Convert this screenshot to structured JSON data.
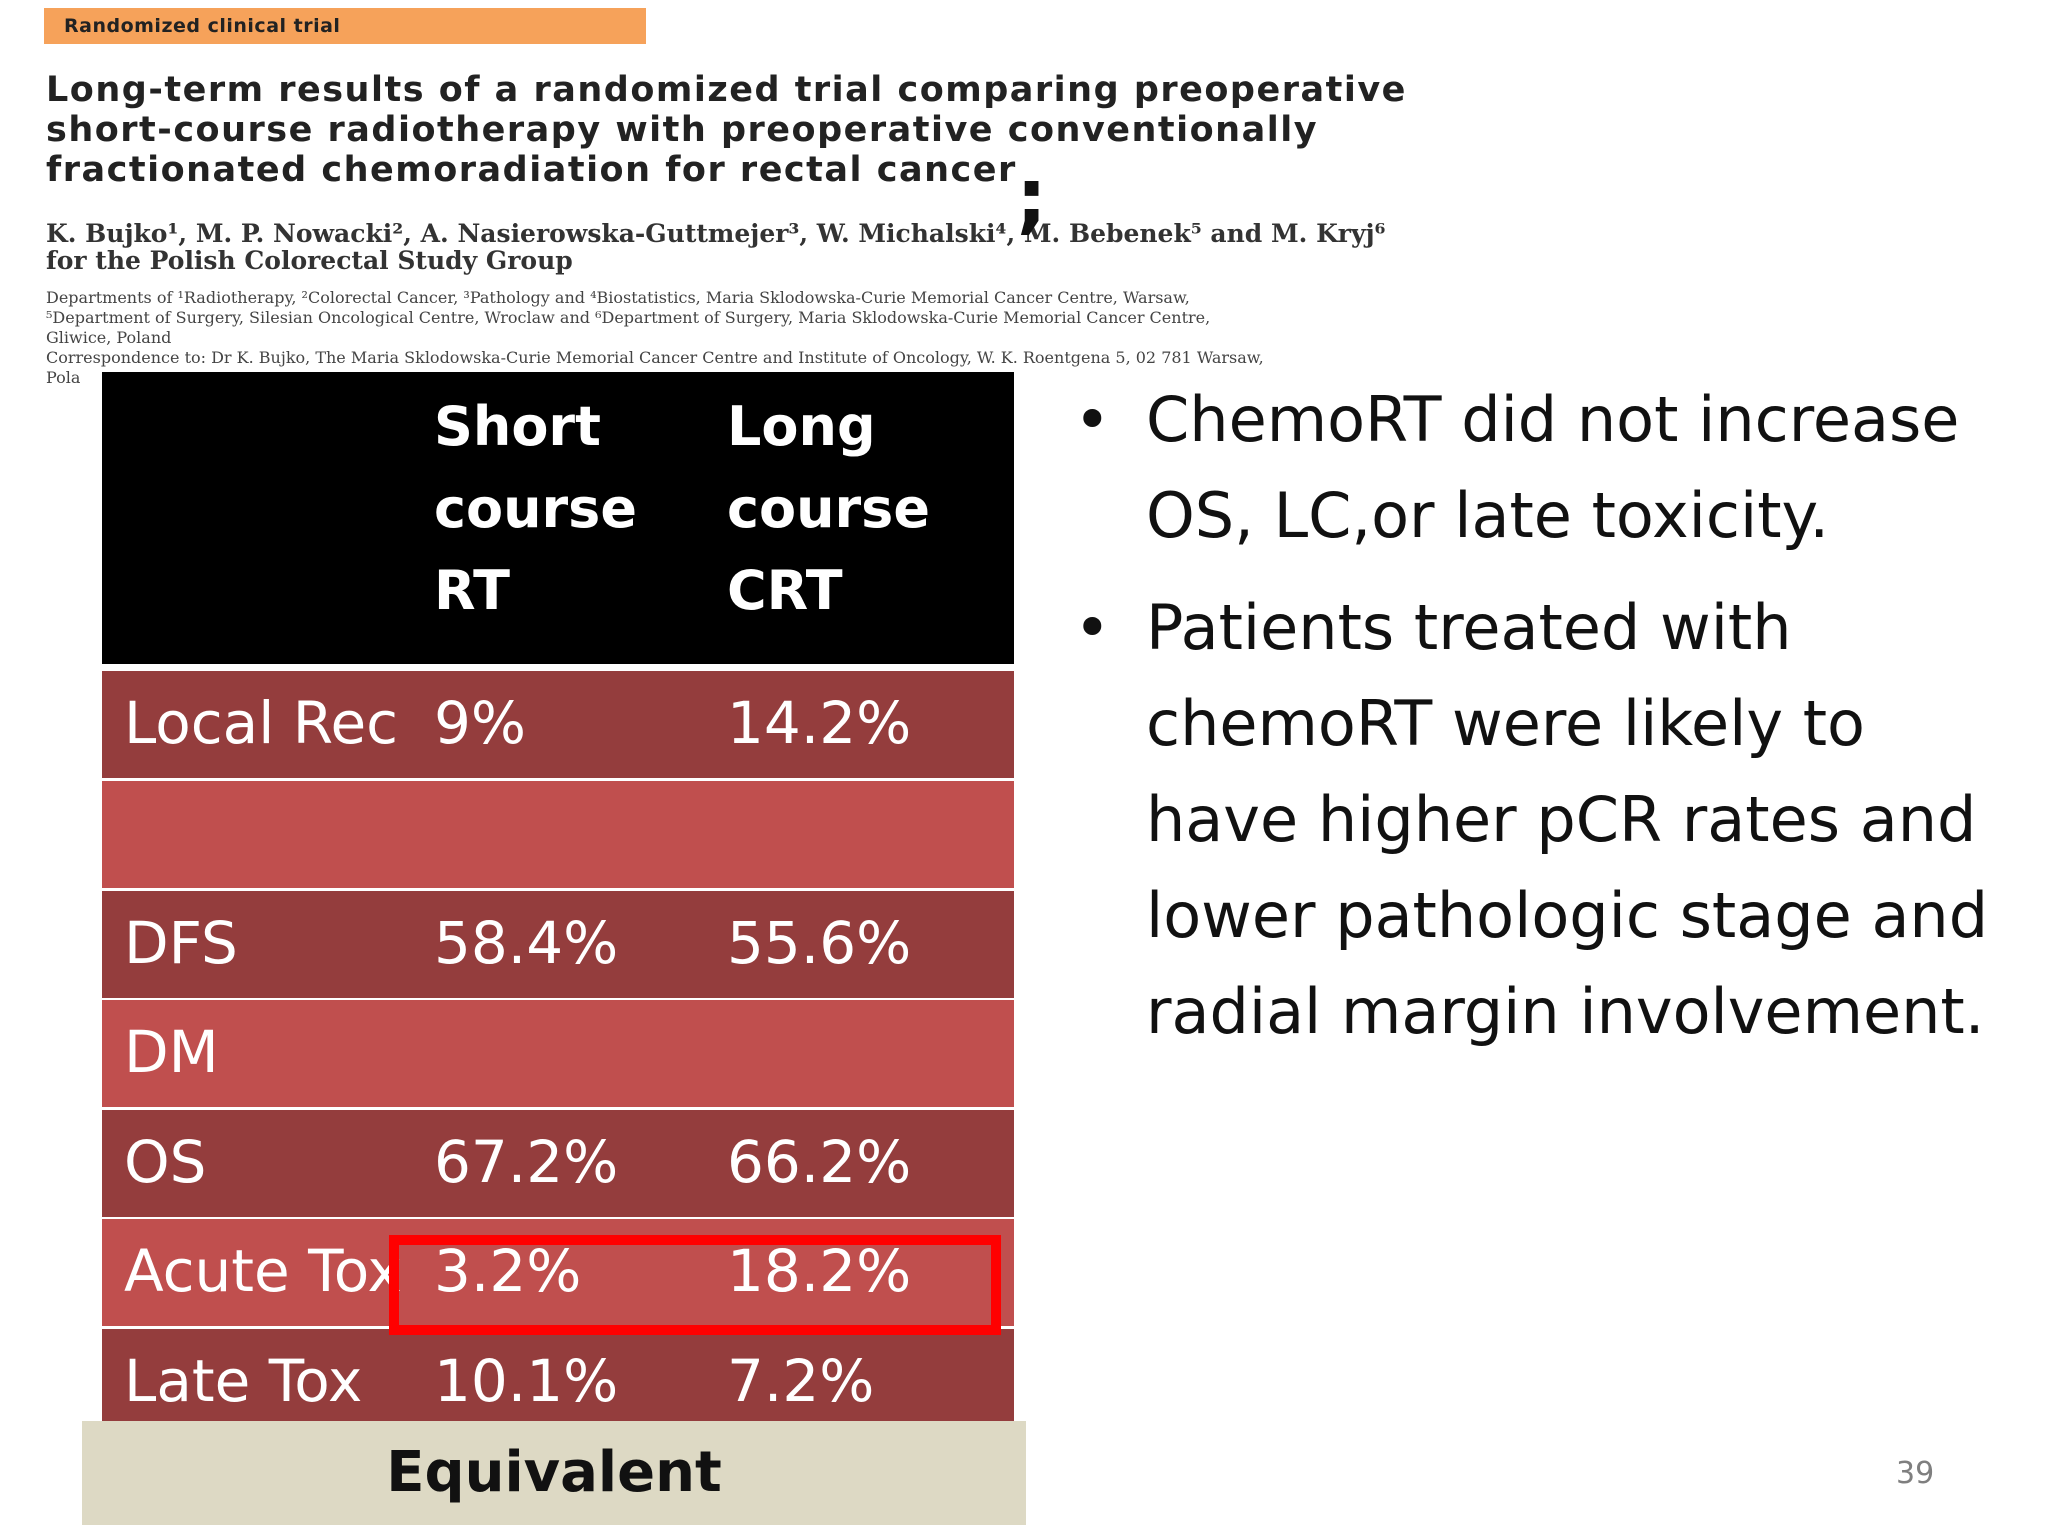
{
  "header": {
    "badge": "Randomized clinical trial",
    "title": "Long-term results of a randomized trial comparing preoperative\nshort-course radiotherapy with preoperative conventionally\nfractionated chemoradiation for rectal cancer",
    "authors": "K. Bujko¹, M. P. Nowacki², A. Nasierowska-Guttmejer³, W. Michalski⁴, M. Bebenek⁵ and M. Kryj⁶\nfor the Polish Colorectal Study Group",
    "affiliations": "Departments of ¹Radiotherapy, ²Colorectal Cancer, ³Pathology and ⁴Biostatistics, Maria Sklodowska-Curie Memorial Cancer Centre, Warsaw,\n⁵Department of Surgery, Silesian Oncological Centre, Wroclaw and ⁶Department of Surgery, Maria Sklodowska-Curie Memorial Cancer Centre,\nGliwice, Poland\nCorrespondence to: Dr K. Bujko, The Maria Sklodowska-Curie Memorial Cancer Centre and Institute of Oncology, W. K. Roentgena 5, 02 781 Warsaw,\nPola",
    "semicolon": ";"
  },
  "table": {
    "headers": [
      "",
      "Short\ncourse\nRT",
      "Long\ncourse\nCRT"
    ],
    "rows": [
      {
        "label": "Local Rec",
        "short": "9%",
        "long": "14.2%"
      },
      {
        "label": "",
        "short": "",
        "long": ""
      },
      {
        "label": "DFS",
        "short": "58.4%",
        "long": "55.6%"
      },
      {
        "label": "DM",
        "short": "",
        "long": ""
      },
      {
        "label": "OS",
        "short": "67.2%",
        "long": "66.2%"
      },
      {
        "label": "Acute Tox",
        "short": "3.2%",
        "long": "18.2%"
      },
      {
        "label": "Late Tox",
        "short": "10.1%",
        "long": "7.2%"
      }
    ],
    "footer": "Equivalent"
  },
  "bullets": [
    "ChemoRT did not increase OS, LC,or late toxicity.",
    "Patients treated with chemoRT were likely to have higher pCR rates and lower pathologic stage and radial margin involvement."
  ],
  "bullet_glyph": "•",
  "page_number": "39",
  "colors": {
    "header_bg": "#000000",
    "row_dark": "#943d3d",
    "row_light": "#c04f4e",
    "highlight": "#ff0000",
    "footer_bg": "#ddd9c4",
    "badge_bg": "#f6a25a"
  }
}
